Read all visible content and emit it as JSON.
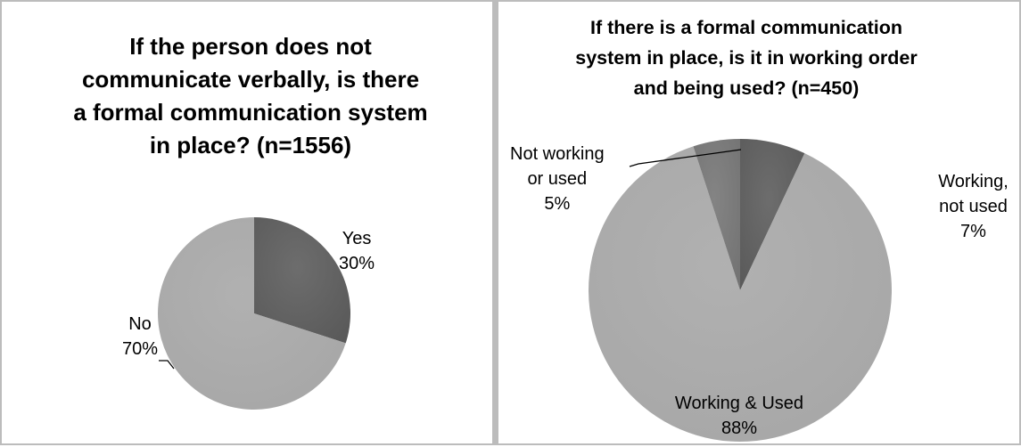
{
  "chart_data": [
    {
      "type": "pie",
      "title": "If the person does not communicate verbally, is there a formal communication system in place?  (n=1556)",
      "title_lines": [
        "If the person does not",
        "communicate verbally, is there",
        "a formal communication system",
        "in place?  (n=1556)"
      ],
      "slices": [
        {
          "label": "Yes",
          "value": 30,
          "value_label": "30%",
          "color": "#595959"
        },
        {
          "label": "No",
          "value": 70,
          "value_label": "70%",
          "color": "#a6a6a6"
        }
      ]
    },
    {
      "type": "pie",
      "title": "If there is a formal communication system in place, is it in working order and being used? (n=450)",
      "title_lines": [
        "If there is a formal communication",
        "system in place, is it in working order",
        "and being used? (n=450)"
      ],
      "slices": [
        {
          "label": "Working, not used",
          "label_lines": [
            "Working,",
            "not used"
          ],
          "value": 7,
          "value_label": "7%",
          "color": "#595959"
        },
        {
          "label": "Working & Used",
          "label_lines": [
            "Working & Used"
          ],
          "value": 88,
          "value_label": "88%",
          "color": "#a6a6a6"
        },
        {
          "label": "Not working or used",
          "label_lines": [
            "Not working",
            "or used"
          ],
          "value": 5,
          "value_label": "5%",
          "color": "#737373"
        }
      ]
    }
  ]
}
